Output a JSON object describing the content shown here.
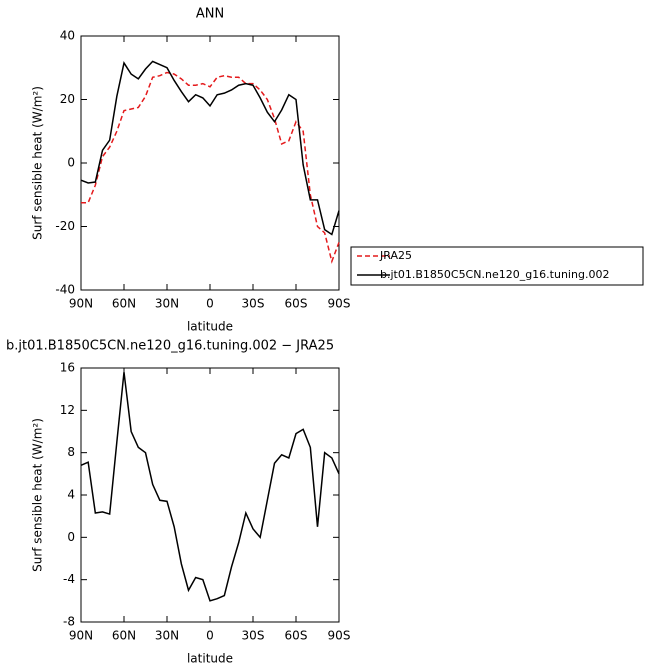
{
  "chart_data": [
    {
      "type": "line",
      "title": "ANN",
      "xlabel": "latitude",
      "ylabel": "Surf sensible heat (W/m²)",
      "x": [
        90,
        85,
        80,
        75,
        70,
        65,
        60,
        55,
        50,
        45,
        40,
        35,
        30,
        25,
        20,
        15,
        10,
        5,
        0,
        -5,
        -10,
        -15,
        -20,
        -25,
        -30,
        -35,
        -40,
        -45,
        -50,
        -55,
        -60,
        -65,
        -70,
        -75,
        -80,
        -85,
        -90
      ],
      "series": [
        {
          "name": "JRA25",
          "color": "#e41a1c",
          "dashed": true,
          "values": [
            -12.5,
            -12.5,
            -7,
            2,
            5,
            10,
            16.5,
            17,
            17.5,
            21,
            27,
            27.5,
            28.5,
            28,
            26.5,
            24.5,
            24.5,
            25,
            24,
            27,
            27.5,
            27,
            27,
            25,
            25,
            23,
            20,
            14,
            6,
            7,
            13,
            10,
            -10,
            -20,
            -22,
            -31,
            -25
          ]
        },
        {
          "name": "b.jt01.B1850C5CN.ne120_g16.tuning.002",
          "color": "#000000",
          "dashed": false,
          "values": [
            -5.4,
            -6.3,
            -6,
            4,
            7.2,
            21,
            31.5,
            28,
            26.5,
            29.6,
            32,
            31,
            30,
            26,
            22.5,
            19.3,
            21.5,
            20.5,
            18,
            21.5,
            22,
            23,
            24.5,
            25,
            24.5,
            20.5,
            16,
            13,
            16.7,
            21.5,
            20,
            -0.6,
            -11.6,
            -11.6,
            -21,
            -22.5,
            -15
          ]
        }
      ],
      "xlim": [
        90,
        -90
      ],
      "xticks": [
        {
          "value": 90,
          "label": "90N"
        },
        {
          "value": 60,
          "label": "60N"
        },
        {
          "value": 30,
          "label": "30N"
        },
        0,
        {
          "value": -30,
          "label": "30S"
        },
        {
          "value": -60,
          "label": "60S"
        },
        {
          "value": -90,
          "label": "90S"
        }
      ],
      "ylim": [
        -40,
        40
      ],
      "yticks": [
        -40,
        -20,
        0,
        20,
        40
      ]
    },
    {
      "type": "line",
      "title": "b.jt01.B1850C5CN.ne120_g16.tuning.002 − JRA25",
      "xlabel": "latitude",
      "ylabel": "Surf sensible heat (W/m²)",
      "x": [
        90,
        85,
        80,
        75,
        70,
        65,
        60,
        55,
        50,
        45,
        40,
        35,
        30,
        25,
        20,
        15,
        10,
        5,
        0,
        -5,
        -10,
        -15,
        -20,
        -25,
        -30,
        -35,
        -40,
        -45,
        -50,
        -55,
        -60,
        -65,
        -70,
        -75,
        -80,
        -85,
        -90
      ],
      "series": [
        {
          "color": "#000000",
          "dashed": false,
          "values": [
            6.8,
            7.1,
            2.3,
            2.4,
            2.2,
            9,
            15.6,
            10,
            8.5,
            8,
            5,
            3.5,
            3.4,
            1,
            -2.5,
            -5,
            -3.8,
            -4,
            -6,
            -5.8,
            -5.5,
            -2.8,
            -0.5,
            2.3,
            0.8,
            0,
            3.5,
            7,
            7.8,
            7.5,
            9.8,
            10.2,
            8.5,
            1,
            8,
            7.5,
            6
          ]
        }
      ],
      "xlim": [
        90,
        -90
      ],
      "xticks": [
        {
          "value": 90,
          "label": "90N"
        },
        {
          "value": 60,
          "label": "60N"
        },
        {
          "value": 30,
          "label": "30N"
        },
        0,
        {
          "value": -30,
          "label": "30S"
        },
        {
          "value": -60,
          "label": "60S"
        },
        {
          "value": -90,
          "label": "90S"
        }
      ],
      "ylim": [
        -8,
        16
      ],
      "yticks": [
        -8,
        -4,
        0,
        4,
        8,
        12,
        16
      ]
    }
  ]
}
